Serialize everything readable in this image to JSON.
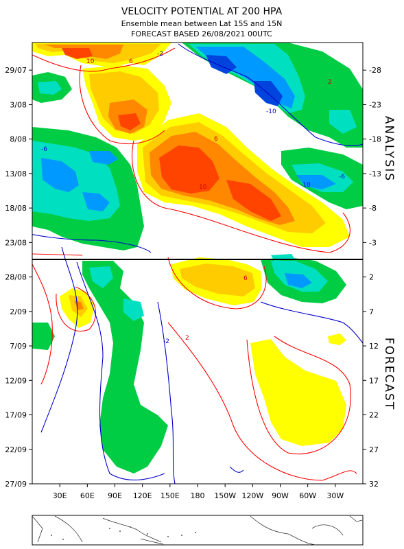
{
  "chart_data": {
    "type": "heatmap",
    "title": "VELOCITY POTENTIAL AT 200 HPA",
    "subtitle_1": "Ensemble mean between  Lat 15S and 15N",
    "subtitle_2": "FORECAST  BASED 26/08/2021 00UTC",
    "section_labels": {
      "analysis": "ANALYSIS",
      "forecast": "FORECAST"
    },
    "xlabel": "",
    "ylabel": "",
    "x_ticks": [
      "30E",
      "60E",
      "90E",
      "120E",
      "150E",
      "180",
      "150W",
      "120W",
      "90W",
      "60W",
      "30W"
    ],
    "x_ticks_deg": [
      30,
      60,
      90,
      120,
      150,
      180,
      210,
      240,
      270,
      300,
      330
    ],
    "xlim": [
      0,
      360
    ],
    "y_ticks_left": [
      "29/07",
      "3/08",
      "8/08",
      "13/08",
      "18/08",
      "23/08",
      "28/08",
      "2/09",
      "7/09",
      "12/09",
      "17/09",
      "22/09",
      "27/09"
    ],
    "y_ticks_right": [
      "-28",
      "-23",
      "-18",
      "-13",
      "-8",
      "-3",
      "2",
      "7",
      "12",
      "17",
      "22",
      "27",
      "32"
    ],
    "y_ticks_right_days": [
      -28,
      -23,
      -18,
      -13,
      -8,
      -3,
      2,
      7,
      12,
      17,
      22,
      27,
      32
    ],
    "ylim_days": [
      -32,
      32
    ],
    "forecast_start_day": 0,
    "contour_levels": [
      -10,
      -8,
      -6,
      -4,
      -2,
      2,
      4,
      6,
      8,
      10
    ],
    "contour_labels_shown": [
      "10",
      "6",
      "-2",
      "2",
      "-6",
      "-10",
      "10",
      "6",
      "-6",
      "-10",
      "6",
      "-2",
      "2"
    ],
    "colors": {
      "positive_light": "#ffff00",
      "positive_mid": "#ffcc00",
      "positive_strong": "#ff8800",
      "positive_max": "#ff2200",
      "negative_light": "#00cc44",
      "negative_mid": "#00e0c0",
      "negative_strong": "#0099ff",
      "negative_max": "#0033cc",
      "contour_positive": "#ff0000",
      "contour_negative": "#0000cc"
    },
    "map_strip": "world coastline, 0 to 360 longitude"
  }
}
